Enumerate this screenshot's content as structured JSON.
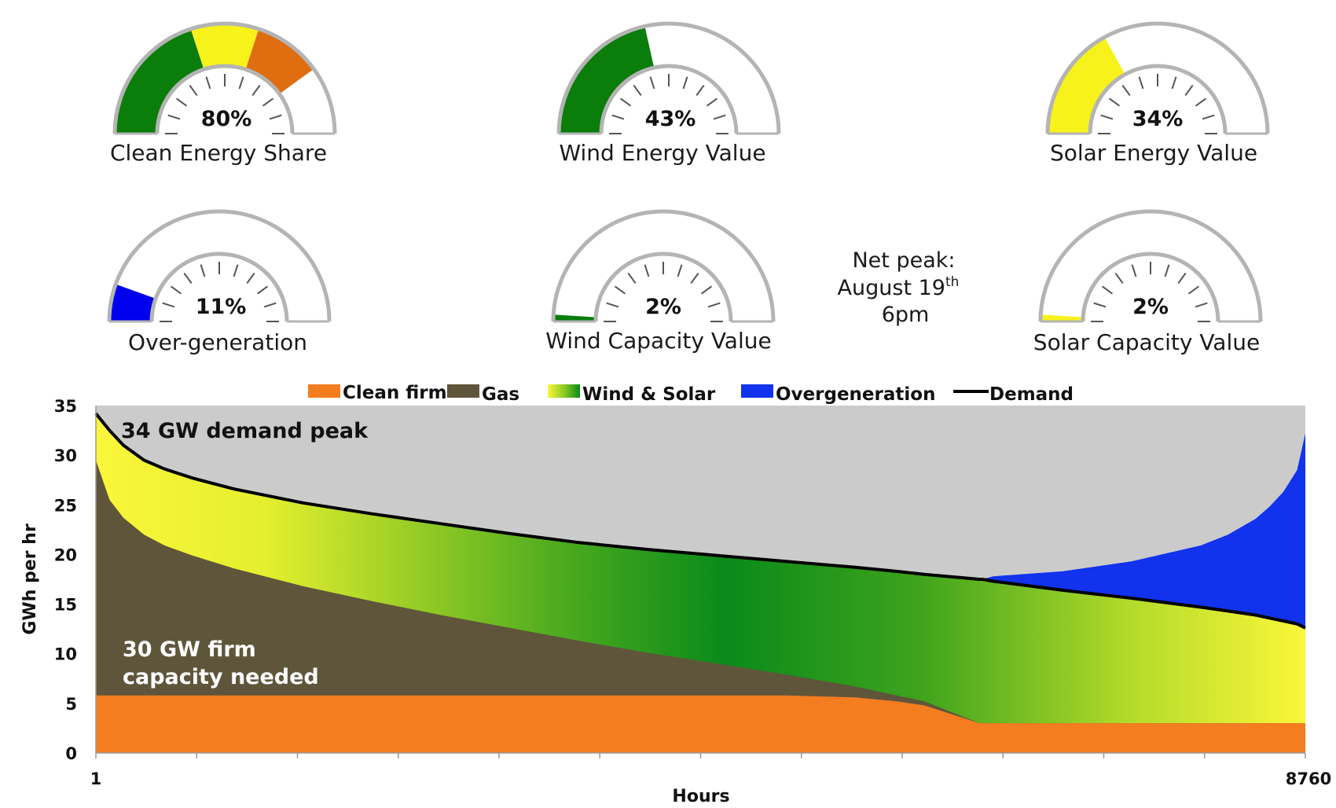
{
  "gauges": [
    {
      "id": "clean-energy-share",
      "label": "Clean Energy Share",
      "value_text": "80%",
      "value": 80,
      "segments": [
        {
          "from": 0,
          "to": 0.4,
          "color": "#0a7d0a"
        },
        {
          "from": 0.4,
          "to": 0.6,
          "color": "#f7f31a"
        },
        {
          "from": 0.6,
          "to": 0.8,
          "color": "#e06d10"
        }
      ]
    },
    {
      "id": "wind-energy-value",
      "label": "Wind Energy Value",
      "value_text": "43%",
      "value": 43,
      "segments": [
        {
          "from": 0,
          "to": 0.43,
          "color": "#0a7d0a"
        }
      ]
    },
    {
      "id": "solar-energy-value",
      "label": "Solar Energy Value",
      "value_text": "34%",
      "value": 34,
      "segments": [
        {
          "from": 0,
          "to": 0.34,
          "color": "#f7f31a"
        }
      ]
    },
    {
      "id": "over-generation",
      "label": "Over-generation",
      "value_text": "11%",
      "value": 11,
      "segments": [
        {
          "from": 0,
          "to": 0.11,
          "color": "#0000ee"
        }
      ]
    },
    {
      "id": "wind-capacity-value",
      "label": "Wind Capacity Value",
      "value_text": "2%",
      "value": 2,
      "segments": [
        {
          "from": 0,
          "to": 0.02,
          "color": "#0a7d0a"
        }
      ]
    },
    {
      "id": "solar-capacity-value",
      "label": "Solar Capacity Value",
      "value_text": "2%",
      "value": 2,
      "segments": [
        {
          "from": 0,
          "to": 0.02,
          "color": "#f7f31a"
        }
      ]
    }
  ],
  "net_peak": {
    "line1": "Net peak:",
    "line2_main": "August 19",
    "line2_sup": "th",
    "line3": "6pm"
  },
  "chart_data": {
    "type": "area",
    "xlabel": "Hours",
    "ylabel": "GWh per hr",
    "xlim": [
      1,
      8760
    ],
    "ylim": [
      0,
      35
    ],
    "x_tick_labels": [
      "1",
      "8760"
    ],
    "y_ticks": [
      0,
      5,
      10,
      15,
      20,
      25,
      30,
      35
    ],
    "legend": [
      "Clean firm",
      "Gas",
      "Wind & Solar",
      "Overgeneration",
      "Demand"
    ],
    "legend_position": "top",
    "annotations": [
      "34 GW demand peak",
      "30 GW firm capacity needed"
    ],
    "x": [
      1,
      100,
      200,
      350,
      500,
      700,
      1000,
      1500,
      2000,
      2500,
      3000,
      3500,
      4000,
      4500,
      5000,
      5500,
      5800,
      6000,
      6400,
      6420,
      6500,
      7000,
      7500,
      8000,
      8200,
      8400,
      8500,
      8600,
      8700,
      8760
    ],
    "series": [
      {
        "name": "Demand",
        "color": "#000000",
        "values": [
          34.2,
          32.5,
          31.0,
          29.5,
          28.6,
          27.7,
          26.6,
          25.2,
          24.1,
          23.1,
          22.1,
          21.2,
          20.5,
          19.9,
          19.3,
          18.7,
          18.3,
          18.0,
          17.5,
          17.5,
          17.3,
          16.4,
          15.6,
          14.7,
          14.3,
          13.9,
          13.6,
          13.3,
          13.0,
          12.6
        ]
      },
      {
        "name": "Clean firm",
        "color": "#f47d20",
        "values": [
          5.8,
          5.8,
          5.8,
          5.8,
          5.8,
          5.8,
          5.8,
          5.8,
          5.8,
          5.8,
          5.8,
          5.8,
          5.8,
          5.8,
          5.8,
          5.6,
          5.2,
          4.8,
          3.0,
          3.0,
          3.0,
          3.0,
          3.0,
          3.0,
          3.0,
          3.0,
          3.0,
          3.0,
          3.0,
          3.0
        ]
      },
      {
        "name": "Gas",
        "color": "#5f553b",
        "values": [
          29.5,
          25.5,
          23.7,
          22.0,
          20.9,
          19.9,
          18.6,
          16.8,
          15.3,
          13.9,
          12.6,
          11.3,
          10.1,
          9.0,
          7.9,
          6.7,
          5.8,
          5.2,
          3.0,
          3.0,
          3.0,
          3.0,
          3.0,
          3.0,
          3.0,
          3.0,
          3.0,
          3.0,
          3.0,
          3.0
        ]
      },
      {
        "name": "Wind & Solar",
        "color": "#0a8a1a",
        "values": [
          34.2,
          32.5,
          31.0,
          29.5,
          28.6,
          27.7,
          26.6,
          25.2,
          24.1,
          23.1,
          22.1,
          21.2,
          20.5,
          19.9,
          19.3,
          18.7,
          18.3,
          18.0,
          17.5,
          17.5,
          17.3,
          16.4,
          15.6,
          14.7,
          14.3,
          13.9,
          13.6,
          13.3,
          13.0,
          12.6
        ]
      },
      {
        "name": "Overgeneration",
        "color": "#1133ee",
        "values": [
          34.2,
          32.5,
          31.0,
          29.5,
          28.6,
          27.7,
          26.6,
          25.2,
          24.1,
          23.1,
          22.1,
          21.2,
          20.5,
          19.9,
          19.3,
          18.7,
          18.3,
          18.0,
          17.5,
          17.5,
          17.8,
          18.3,
          19.3,
          20.9,
          22.0,
          23.6,
          24.8,
          26.3,
          28.5,
          32.2
        ]
      }
    ]
  }
}
